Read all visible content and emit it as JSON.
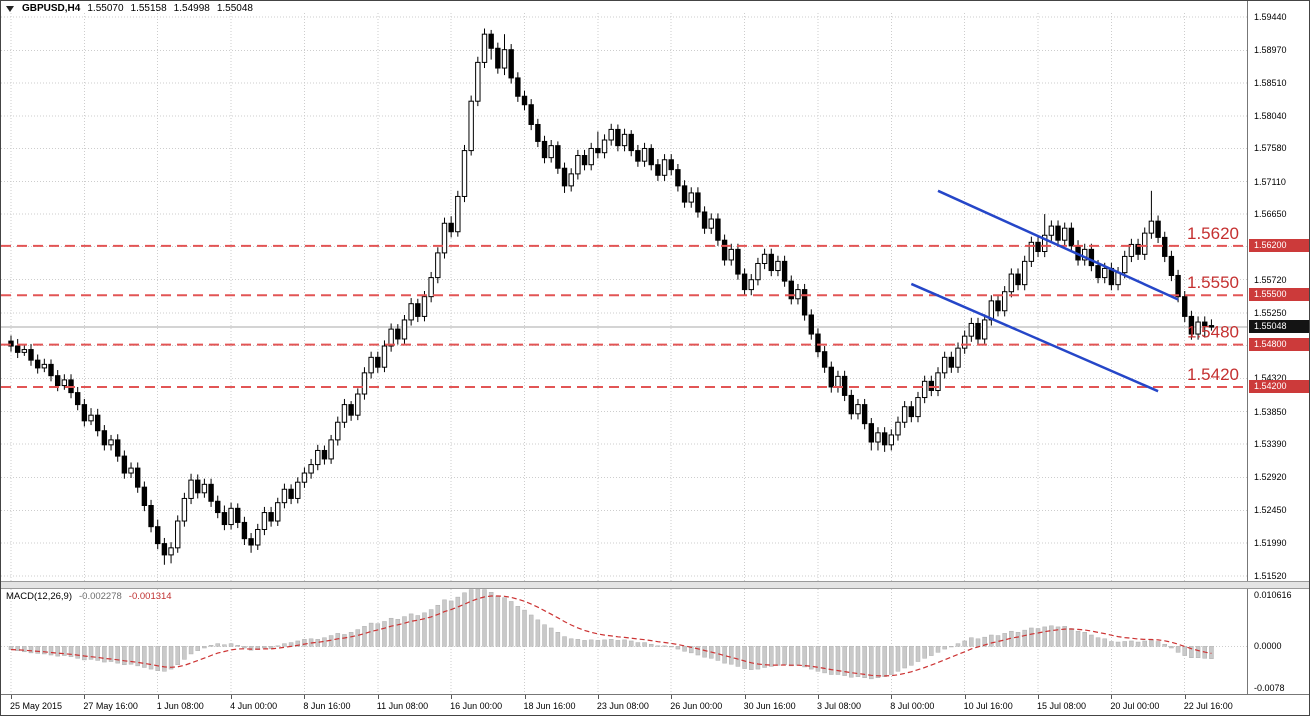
{
  "header": {
    "symbol_period": "GBPUSD,H4",
    "open": "1.55070",
    "high": "1.55158",
    "low": "1.54998",
    "close": "1.55048"
  },
  "chart_data": {
    "type": "candlestick",
    "symbol": "GBPUSD",
    "timeframe": "H4",
    "ylim": [
      1.5145,
      1.595
    ],
    "gridline_prices": [
      1.5944,
      1.5897,
      1.5851,
      1.5804,
      1.5758,
      1.5711,
      1.5665,
      1.5619,
      1.5572,
      1.5525,
      1.5479,
      1.5432,
      1.5385,
      1.5339,
      1.5292,
      1.5245,
      1.5199,
      1.5152
    ],
    "price_axis_labels": [
      1.5944,
      1.5897,
      1.5851,
      1.5804,
      1.5758,
      1.5711,
      1.5665,
      1.5572,
      1.5525,
      1.5432,
      1.5385,
      1.5339,
      1.5292,
      1.5245,
      1.5199,
      1.5152
    ],
    "time_axis_labels": [
      "25 May 2015",
      "27 May 16:00",
      "1 Jun 08:00",
      "4 Jun 00:00",
      "8 Jun 16:00",
      "11 Jun 08:00",
      "16 Jun 00:00",
      "18 Jun 16:00",
      "23 Jun 08:00",
      "26 Jun 00:00",
      "30 Jun 16:00",
      "3 Jul 08:00",
      "8 Jul 00:00",
      "10 Jul 16:00",
      "15 Jul 08:00",
      "20 Jul 00:00",
      "22 Jul 16:00"
    ],
    "candles_per_label": 11,
    "open_first": 1.5485,
    "closes": [
      1.5478,
      1.5469,
      1.5473,
      1.5458,
      1.5447,
      1.5452,
      1.5436,
      1.5422,
      1.543,
      1.5412,
      1.5395,
      1.5372,
      1.538,
      1.5358,
      1.5338,
      1.5345,
      1.5322,
      1.5298,
      1.5305,
      1.5278,
      1.5252,
      1.5222,
      1.5198,
      1.5182,
      1.5192,
      1.523,
      1.5262,
      1.5288,
      1.527,
      1.5282,
      1.5258,
      1.5242,
      1.5225,
      1.5248,
      1.5228,
      1.5205,
      1.5196,
      1.5218,
      1.5242,
      1.523,
      1.5256,
      1.5275,
      1.5262,
      1.5285,
      1.5298,
      1.531,
      1.533,
      1.5318,
      1.5345,
      1.537,
      1.5395,
      1.538,
      1.541,
      1.544,
      1.5462,
      1.5448,
      1.5478,
      1.5502,
      1.5488,
      1.5515,
      1.5538,
      1.552,
      1.5548,
      1.5575,
      1.561,
      1.5652,
      1.564,
      1.569,
      1.5755,
      1.5825,
      1.588,
      1.592,
      1.59,
      1.5872,
      1.5898,
      1.5858,
      1.5832,
      1.582,
      1.5792,
      1.5768,
      1.5745,
      1.5762,
      1.573,
      1.5705,
      1.5722,
      1.5748,
      1.5735,
      1.5758,
      1.5752,
      1.577,
      1.5785,
      1.5762,
      1.5778,
      1.5755,
      1.574,
      1.5758,
      1.5735,
      1.572,
      1.5742,
      1.5728,
      1.5705,
      1.5682,
      1.5695,
      1.5668,
      1.5645,
      1.5658,
      1.5628,
      1.56,
      1.5615,
      1.558,
      1.5558,
      1.5572,
      1.5595,
      1.5608,
      1.5585,
      1.5598,
      1.557,
      1.5545,
      1.5558,
      1.5522,
      1.5495,
      1.547,
      1.5448,
      1.542,
      1.5435,
      1.5408,
      1.5382,
      1.5395,
      1.5368,
      1.5342,
      1.5355,
      1.5338,
      1.5352,
      1.537,
      1.5392,
      1.5378,
      1.5405,
      1.5428,
      1.5415,
      1.544,
      1.5462,
      1.5448,
      1.5475,
      1.5492,
      1.551,
      1.5488,
      1.5515,
      1.5542,
      1.5528,
      1.5555,
      1.558,
      1.5565,
      1.5598,
      1.5625,
      1.5612,
      1.5635,
      1.5648,
      1.5628,
      1.5645,
      1.562,
      1.56,
      1.5615,
      1.5592,
      1.5575,
      1.5588,
      1.5565,
      1.5582,
      1.5605,
      1.5622,
      1.5608,
      1.5638,
      1.5655,
      1.5632,
      1.5605,
      1.5578,
      1.5548,
      1.552,
      1.5495,
      1.5512,
      1.5507,
      1.55048
    ],
    "highs": [
      1.5493,
      1.5488,
      1.5479,
      1.5481,
      1.5466,
      1.546,
      1.5459,
      1.5444,
      1.5438,
      1.5438,
      1.542,
      1.5403,
      1.539,
      1.5389,
      1.5366,
      1.5352,
      1.5353,
      1.533,
      1.5313,
      1.5313,
      1.5286,
      1.526,
      1.5232,
      1.5206,
      1.52,
      1.5238,
      1.527,
      1.5297,
      1.5296,
      1.529,
      1.529,
      1.5266,
      1.5252,
      1.5256,
      1.5255,
      1.5236,
      1.5213,
      1.5226,
      1.525,
      1.525,
      1.5263,
      1.5283,
      1.5282,
      1.5292,
      1.5306,
      1.5318,
      1.5338,
      1.5337,
      1.5352,
      1.5378,
      1.5403,
      1.54,
      1.5418,
      1.5448,
      1.547,
      1.547,
      1.5486,
      1.551,
      1.5509,
      1.5522,
      1.5546,
      1.5545,
      1.5556,
      1.5583,
      1.5618,
      1.566,
      1.5662,
      1.5698,
      1.5763,
      1.5833,
      1.5888,
      1.5928,
      1.5926,
      1.5908,
      1.592,
      1.5906,
      1.5866,
      1.584,
      1.5828,
      1.58,
      1.5776,
      1.577,
      1.5768,
      1.5738,
      1.573,
      1.5756,
      1.5756,
      1.5766,
      1.5782,
      1.5778,
      1.5793,
      1.5792,
      1.5786,
      1.5784,
      1.5763,
      1.5766,
      1.5764,
      1.5743,
      1.575,
      1.575,
      1.5736,
      1.5713,
      1.5703,
      1.5703,
      1.5676,
      1.5666,
      1.5666,
      1.5636,
      1.5623,
      1.5623,
      1.5588,
      1.558,
      1.5603,
      1.5616,
      1.5616,
      1.5606,
      1.5606,
      1.5578,
      1.5566,
      1.5566,
      1.553,
      1.5503,
      1.5478,
      1.5456,
      1.5443,
      1.5443,
      1.5416,
      1.5403,
      1.5403,
      1.5376,
      1.5363,
      1.5363,
      1.536,
      1.5378,
      1.54,
      1.54,
      1.5413,
      1.5436,
      1.5436,
      1.5448,
      1.547,
      1.547,
      1.5483,
      1.55,
      1.5518,
      1.5518,
      1.5523,
      1.555,
      1.555,
      1.5563,
      1.5588,
      1.5588,
      1.5606,
      1.5633,
      1.5633,
      1.5665,
      1.5656,
      1.5656,
      1.5653,
      1.5653,
      1.5628,
      1.5623,
      1.5623,
      1.56,
      1.5596,
      1.5596,
      1.559,
      1.5613,
      1.563,
      1.563,
      1.5646,
      1.5698,
      1.5663,
      1.564,
      1.5613,
      1.5586,
      1.5556,
      1.5528,
      1.552,
      1.552,
      1.55158
    ],
    "lows": [
      1.547,
      1.5461,
      1.5464,
      1.545,
      1.5439,
      1.5441,
      1.5428,
      1.5414,
      1.5416,
      1.5404,
      1.5387,
      1.5364,
      1.5366,
      1.535,
      1.533,
      1.533,
      1.5314,
      1.529,
      1.5291,
      1.527,
      1.5244,
      1.5214,
      1.519,
      1.5168,
      1.517,
      1.5185,
      1.5222,
      1.5254,
      1.5262,
      1.5263,
      1.525,
      1.5234,
      1.5217,
      1.5218,
      1.522,
      1.5196,
      1.5185,
      1.5189,
      1.521,
      1.5222,
      1.5223,
      1.5248,
      1.5254,
      1.5255,
      1.5277,
      1.529,
      1.5302,
      1.531,
      1.5311,
      1.5337,
      1.5362,
      1.5372,
      1.5373,
      1.5402,
      1.5432,
      1.544,
      1.5441,
      1.547,
      1.548,
      1.5481,
      1.5507,
      1.5512,
      1.5513,
      1.554,
      1.5567,
      1.5602,
      1.5632,
      1.5633,
      1.5682,
      1.5748,
      1.5818,
      1.5872,
      1.5884,
      1.5864,
      1.5862,
      1.585,
      1.5824,
      1.5812,
      1.5784,
      1.576,
      1.5737,
      1.5738,
      1.5722,
      1.5695,
      1.5697,
      1.5714,
      1.5727,
      1.5727,
      1.5744,
      1.5744,
      1.5762,
      1.5754,
      1.5754,
      1.5747,
      1.5732,
      1.5732,
      1.5727,
      1.5712,
      1.5712,
      1.572,
      1.5697,
      1.5674,
      1.5674,
      1.566,
      1.5637,
      1.5637,
      1.562,
      1.5592,
      1.5592,
      1.5572,
      1.555,
      1.555,
      1.5564,
      1.5587,
      1.5577,
      1.5577,
      1.5562,
      1.5537,
      1.5537,
      1.5514,
      1.5487,
      1.5462,
      1.544,
      1.5412,
      1.5412,
      1.54,
      1.5374,
      1.5374,
      1.536,
      1.533,
      1.533,
      1.5328,
      1.533,
      1.5344,
      1.5362,
      1.537,
      1.537,
      1.5397,
      1.5407,
      1.5407,
      1.5432,
      1.544,
      1.544,
      1.5467,
      1.5484,
      1.548,
      1.548,
      1.5507,
      1.552,
      1.552,
      1.5547,
      1.5557,
      1.5557,
      1.559,
      1.5604,
      1.5604,
      1.5627,
      1.562,
      1.562,
      1.5612,
      1.5592,
      1.5592,
      1.5584,
      1.5567,
      1.5567,
      1.5557,
      1.5557,
      1.5574,
      1.5597,
      1.56,
      1.56,
      1.563,
      1.5624,
      1.5597,
      1.557,
      1.554,
      1.5512,
      1.5487,
      1.5487,
      1.549,
      1.54998
    ],
    "levels": [
      {
        "price": 1.562,
        "text": "1.5620",
        "badge": "1.56200"
      },
      {
        "price": 1.555,
        "text": "1.5550",
        "badge": "1.55500"
      },
      {
        "price": 1.548,
        "text": "1.5480",
        "badge": "1.54800"
      },
      {
        "price": 1.542,
        "text": "1.5420",
        "badge": "1.54200"
      }
    ],
    "current_price": {
      "price": 1.55048,
      "badge": "1.55048"
    },
    "channel": {
      "upper": [
        139,
        1.5698,
        175,
        1.5544
      ],
      "lower": [
        135,
        1.5566,
        172,
        1.5414
      ]
    },
    "macd": {
      "label": "MACD(12,26,9)",
      "main_value": "-0.002278",
      "signal_value": "-0.001314",
      "signal_ema_period": 9,
      "ylim": [
        -0.0088,
        0.0106
      ],
      "axis_labels": [
        {
          "v": 0.0106,
          "text": "0.010616"
        },
        {
          "v": 0.0,
          "text": "0.0000"
        },
        {
          "v": -0.0078,
          "text": "-0.0078"
        }
      ],
      "main_x10000": [
        -6,
        -8,
        -10,
        -12,
        -13,
        -14,
        -16,
        -18,
        -17,
        -19,
        -22,
        -25,
        -24,
        -26,
        -29,
        -28,
        -31,
        -34,
        -33,
        -36,
        -39,
        -42,
        -45,
        -46,
        -42,
        -34,
        -24,
        -14,
        -8,
        -3,
        2,
        5,
        3,
        5,
        2,
        -3,
        -7,
        -6,
        -3,
        -4,
        1,
        5,
        7,
        10,
        13,
        14,
        13,
        16,
        20,
        24,
        22,
        26,
        31,
        37,
        43,
        42,
        46,
        52,
        50,
        55,
        60,
        57,
        62,
        68,
        76,
        86,
        84,
        91,
        99,
        105,
        106,
        105,
        100,
        93,
        90,
        83,
        74,
        67,
        58,
        49,
        40,
        34,
        26,
        18,
        14,
        13,
        11,
        12,
        11,
        12,
        13,
        11,
        12,
        10,
        7,
        7,
        4,
        1,
        1,
        -1,
        -5,
        -9,
        -12,
        -16,
        -20,
        -22,
        -26,
        -31,
        -33,
        -37,
        -41,
        -43,
        -42,
        -39,
        -37,
        -35,
        -34,
        -36,
        -35,
        -38,
        -42,
        -46,
        -49,
        -52,
        -52,
        -54,
        -57,
        -56,
        -58,
        -60,
        -58,
        -56,
        -52,
        -46,
        -40,
        -35,
        -28,
        -22,
        -17,
        -11,
        -5,
        0,
        5,
        10,
        16,
        14,
        17,
        21,
        20,
        24,
        28,
        26,
        30,
        34,
        33,
        36,
        38,
        36,
        37,
        33,
        28,
        26,
        21,
        16,
        14,
        9,
        8,
        9,
        10,
        8,
        10,
        12,
        9,
        4,
        -3,
        -11,
        -17,
        -21,
        -21,
        -22,
        -22.78
      ]
    },
    "colors": {
      "grid": "#cdcdcd",
      "bull": "#ffffff",
      "bear": "#000000",
      "candle_outline": "#000000",
      "level_line": "#e25555",
      "level_text": "#c53030",
      "level_badge": "#cc3a3a",
      "current_line": "#aaaaaa",
      "current_badge": "#141414",
      "channel": "#2546c8",
      "macd_hist_fill": "#c9c9c9",
      "macd_hist_edge": "#aeaeae",
      "macd_signal": "#cc3333"
    }
  }
}
